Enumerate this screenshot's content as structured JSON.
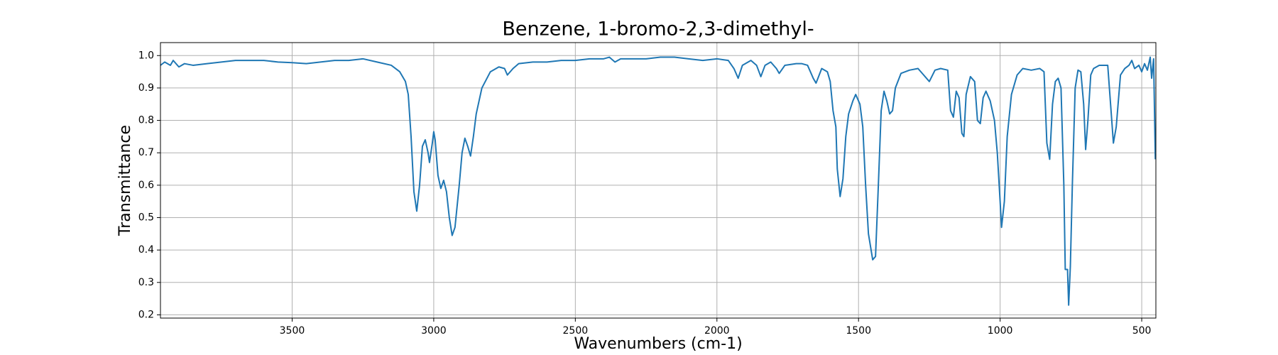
{
  "chart_data": {
    "type": "line",
    "title": "Benzene, 1-bromo-2,3-dimethyl-",
    "xlabel": "Wavenumbers (cm-1)",
    "ylabel": "Transmittance",
    "color": "#1f77b4",
    "grid": true,
    "xlim": [
      3965,
      450
    ],
    "ylim": [
      0.19,
      1.04
    ],
    "xticks": [
      3500,
      3000,
      2500,
      2000,
      1500,
      1000,
      500
    ],
    "yticks": [
      0.2,
      0.3,
      0.4,
      0.5,
      0.6,
      0.7,
      0.8,
      0.9,
      {
        "value": 1,
        "label": "1.0"
      }
    ],
    "x": [
      3965,
      3950,
      3930,
      3920,
      3900,
      3880,
      3850,
      3800,
      3750,
      3700,
      3650,
      3600,
      3550,
      3500,
      3450,
      3400,
      3350,
      3300,
      3250,
      3200,
      3150,
      3120,
      3100,
      3090,
      3080,
      3070,
      3060,
      3050,
      3040,
      3030,
      3020,
      3015,
      3005,
      3000,
      2995,
      2985,
      2975,
      2965,
      2955,
      2945,
      2935,
      2925,
      2910,
      2900,
      2890,
      2880,
      2870,
      2860,
      2850,
      2830,
      2800,
      2770,
      2750,
      2740,
      2720,
      2700,
      2650,
      2600,
      2550,
      2500,
      2450,
      2400,
      2380,
      2360,
      2340,
      2300,
      2250,
      2200,
      2150,
      2100,
      2050,
      2000,
      1960,
      1940,
      1925,
      1910,
      1880,
      1860,
      1845,
      1830,
      1810,
      1790,
      1780,
      1760,
      1720,
      1700,
      1680,
      1660,
      1650,
      1630,
      1610,
      1600,
      1590,
      1580,
      1575,
      1565,
      1555,
      1545,
      1535,
      1520,
      1510,
      1495,
      1485,
      1475,
      1465,
      1450,
      1440,
      1430,
      1420,
      1410,
      1400,
      1390,
      1380,
      1370,
      1350,
      1320,
      1290,
      1270,
      1250,
      1230,
      1210,
      1185,
      1175,
      1165,
      1155,
      1145,
      1135,
      1128,
      1120,
      1105,
      1090,
      1080,
      1070,
      1060,
      1050,
      1035,
      1020,
      1010,
      1000,
      995,
      985,
      975,
      960,
      940,
      920,
      890,
      860,
      845,
      835,
      825,
      815,
      805,
      795,
      785,
      775,
      770,
      762,
      758,
      752,
      745,
      735,
      725,
      715,
      705,
      698,
      690,
      680,
      670,
      650,
      620,
      610,
      600,
      590,
      575,
      560,
      545,
      535,
      525,
      510,
      500,
      490,
      480,
      470,
      465,
      458,
      452
    ],
    "values": [
      0.97,
      0.98,
      0.97,
      0.985,
      0.965,
      0.975,
      0.97,
      0.975,
      0.98,
      0.985,
      0.985,
      0.985,
      0.98,
      0.978,
      0.975,
      0.98,
      0.985,
      0.985,
      0.99,
      0.98,
      0.97,
      0.95,
      0.92,
      0.88,
      0.75,
      0.58,
      0.52,
      0.6,
      0.72,
      0.74,
      0.7,
      0.67,
      0.73,
      0.765,
      0.74,
      0.63,
      0.59,
      0.615,
      0.58,
      0.5,
      0.445,
      0.47,
      0.6,
      0.7,
      0.745,
      0.72,
      0.69,
      0.75,
      0.82,
      0.9,
      0.95,
      0.965,
      0.96,
      0.94,
      0.96,
      0.975,
      0.98,
      0.98,
      0.985,
      0.985,
      0.99,
      0.99,
      0.995,
      0.98,
      0.99,
      0.99,
      0.99,
      0.995,
      0.995,
      0.99,
      0.985,
      0.99,
      0.985,
      0.96,
      0.93,
      0.97,
      0.985,
      0.97,
      0.935,
      0.97,
      0.98,
      0.96,
      0.945,
      0.97,
      0.975,
      0.975,
      0.97,
      0.93,
      0.915,
      0.96,
      0.95,
      0.92,
      0.83,
      0.78,
      0.65,
      0.565,
      0.62,
      0.75,
      0.82,
      0.86,
      0.88,
      0.85,
      0.78,
      0.6,
      0.45,
      0.37,
      0.38,
      0.6,
      0.83,
      0.89,
      0.86,
      0.82,
      0.83,
      0.9,
      0.945,
      0.955,
      0.96,
      0.94,
      0.92,
      0.955,
      0.96,
      0.955,
      0.83,
      0.81,
      0.89,
      0.87,
      0.76,
      0.75,
      0.88,
      0.935,
      0.92,
      0.8,
      0.79,
      0.87,
      0.89,
      0.86,
      0.8,
      0.7,
      0.55,
      0.47,
      0.55,
      0.75,
      0.88,
      0.94,
      0.96,
      0.955,
      0.96,
      0.95,
      0.73,
      0.68,
      0.85,
      0.92,
      0.93,
      0.9,
      0.6,
      0.34,
      0.34,
      0.23,
      0.35,
      0.6,
      0.9,
      0.955,
      0.95,
      0.85,
      0.71,
      0.8,
      0.94,
      0.96,
      0.97,
      0.97,
      0.85,
      0.73,
      0.78,
      0.94,
      0.96,
      0.97,
      0.985,
      0.96,
      0.97,
      0.95,
      0.975,
      0.955,
      0.995,
      0.93,
      0.99,
      0.68
    ]
  }
}
